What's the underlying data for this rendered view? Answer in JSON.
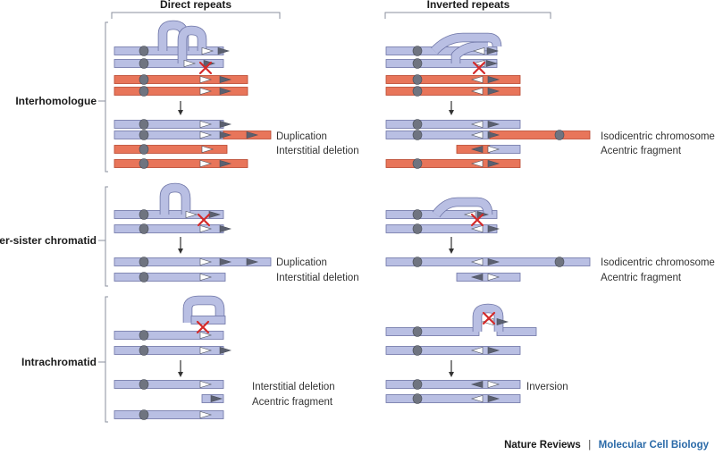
{
  "columns": {
    "direct": "Direct repeats",
    "inverted": "Inverted repeats"
  },
  "rows": {
    "interhomologue": "Interhomologue",
    "inter_sister": "Inter-sister chromatid",
    "intrachromatid": "Intrachromatid"
  },
  "results": {
    "r1_direct_1": "Duplication",
    "r1_direct_2": "Interstitial deletion",
    "r1_inverted_1": "Isodicentric chromosome",
    "r1_inverted_2": "Acentric fragment",
    "r2_direct_1": "Duplication",
    "r2_direct_2": "Interstitial deletion",
    "r2_inverted_1": "Isodicentric chromosome",
    "r2_inverted_2": "Acentric fragment",
    "r3_direct_1": "Interstitial deletion",
    "r3_direct_2": "Acentric fragment",
    "r3_inverted_1": "Inversion"
  },
  "footer": {
    "publisher": "Nature Reviews",
    "separator": "|",
    "journal": "Molecular Cell Biology"
  },
  "colors": {
    "chromatid_blue": "#b9bfe3",
    "chromatid_blue_stroke": "#6d74a6",
    "chromatid_orange": "#e8755a",
    "chromatid_orange_stroke": "#b8472f",
    "centromere": "#6f7480",
    "repeat_open": "#ffffff",
    "repeat_dark": "#5b6070",
    "crossover": "#d42a2a",
    "bracket": "#8a8f9e",
    "arrow": "#333333"
  }
}
